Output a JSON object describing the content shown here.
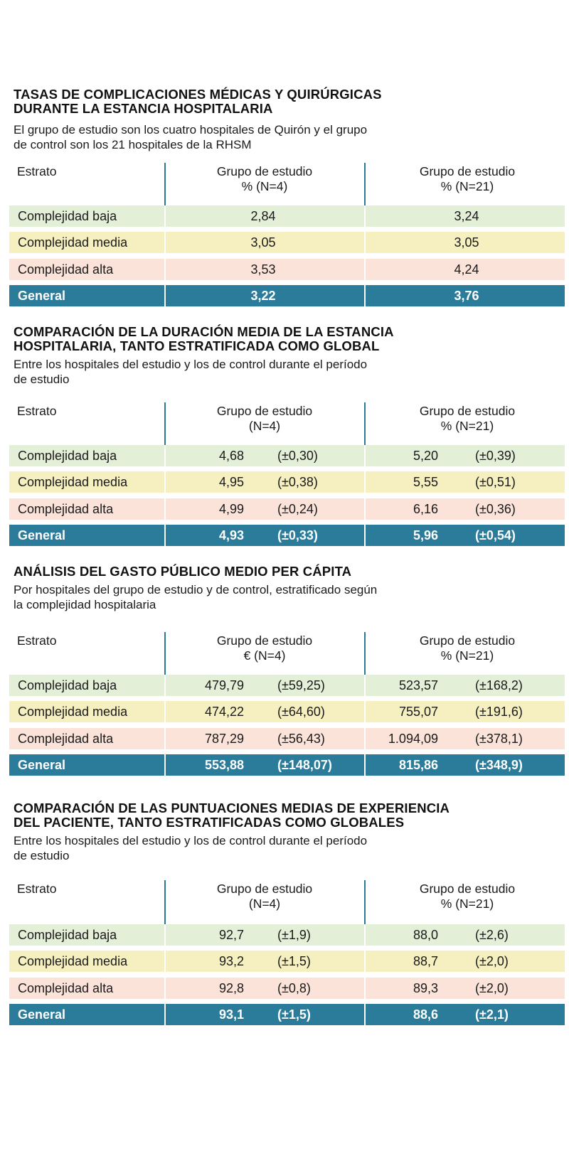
{
  "tables": [
    {
      "title": "TASAS DE COMPLICACIONES MÉDICAS Y QUIRÚRGICAS\nDURANTE LA ESTANCIA HOSPITALARIA",
      "subtitle": "El grupo de estudio son los cuatro hospitales de Quirón y el grupo\nde control son los 21 hospitales de la RHSM",
      "header": {
        "col0": "Estrato",
        "col1": "Grupo de estudio\n% (N=4)",
        "col2": "Grupo de estudio\n% (N=21)"
      },
      "rows": [
        {
          "label": "Complejidad baja",
          "a": "2,84",
          "b": "3,24"
        },
        {
          "label": "Complejidad media",
          "a": "3,05",
          "b": "3,05"
        },
        {
          "label": "Complejidad alta",
          "a": "3,53",
          "b": "4,24"
        },
        {
          "label": "General",
          "a": "3,22",
          "b": "3,76"
        }
      ]
    },
    {
      "title": "COMPARACIÓN DE LA DURACIÓN MEDIA DE LA ESTANCIA\nHOSPITALARIA, TANTO ESTRATIFICADA COMO GLOBAL",
      "subtitle": "Entre los hospitales del estudio y los de control durante el período\nde estudio",
      "header": {
        "col0": "Estrato",
        "col1": "Grupo de estudio\n(N=4)",
        "col2": "Grupo de estudio\n% (N=21)"
      },
      "rows": [
        {
          "label": "Complejidad baja",
          "a": "4,68",
          "a_sd": "(±0,30)",
          "b": "5,20",
          "b_sd": "(±0,39)"
        },
        {
          "label": "Complejidad media",
          "a": "4,95",
          "a_sd": "(±0,38)",
          "b": "5,55",
          "b_sd": "(±0,51)"
        },
        {
          "label": "Complejidad alta",
          "a": "4,99",
          "a_sd": "(±0,24)",
          "b": "6,16",
          "b_sd": "(±0,36)"
        },
        {
          "label": "General",
          "a": "4,93",
          "a_sd": "(±0,33)",
          "b": "5,96",
          "b_sd": "(±0,54)"
        }
      ]
    },
    {
      "title": "ANÁLISIS DEL GASTO PÚBLICO MEDIO PER CÁPITA",
      "subtitle": "Por hospitales del grupo de estudio y de control, estratificado según\nla complejidad hospitalaria",
      "header": {
        "col0": "Estrato",
        "col1": "Grupo de estudio\n€ (N=4)",
        "col2": "Grupo de estudio\n% (N=21)"
      },
      "rows": [
        {
          "label": "Complejidad baja",
          "a": "479,79",
          "a_sd": "(±59,25)",
          "b": "523,57",
          "b_sd": "(±168,2)"
        },
        {
          "label": "Complejidad media",
          "a": "474,22",
          "a_sd": "(±64,60)",
          "b": "755,07",
          "b_sd": "(±191,6)"
        },
        {
          "label": "Complejidad alta",
          "a": "787,29",
          "a_sd": "(±56,43)",
          "b": "1.094,09",
          "b_sd": "(±378,1)"
        },
        {
          "label": "General",
          "a": "553,88",
          "a_sd": "(±148,07)",
          "b": "815,86",
          "b_sd": "(±348,9)"
        }
      ]
    },
    {
      "title": "COMPARACIÓN DE LAS PUNTUACIONES MEDIAS DE EXPERIENCIA\nDEL PACIENTE, TANTO ESTRATIFICADAS COMO GLOBALES",
      "subtitle": "Entre los hospitales del estudio y los de control durante el período\nde estudio",
      "header": {
        "col0": "Estrato",
        "col1": "Grupo de estudio\n(N=4)",
        "col2": "Grupo de estudio\n% (N=21)"
      },
      "rows": [
        {
          "label": "Complejidad baja",
          "a": "92,7",
          "a_sd": "(±1,9)",
          "b": "88,0",
          "b_sd": "(±2,6)"
        },
        {
          "label": "Complejidad media",
          "a": "93,2",
          "a_sd": "(±1,5)",
          "b": "88,7",
          "b_sd": "(±2,0)"
        },
        {
          "label": "Complejidad alta",
          "a": "92,8",
          "a_sd": "(±0,8)",
          "b": "89,3",
          "b_sd": "(±2,0)"
        },
        {
          "label": "General",
          "a": "93,1",
          "a_sd": "(±1,5)",
          "b": "88,6",
          "b_sd": "(±2,1)"
        }
      ]
    }
  ]
}
